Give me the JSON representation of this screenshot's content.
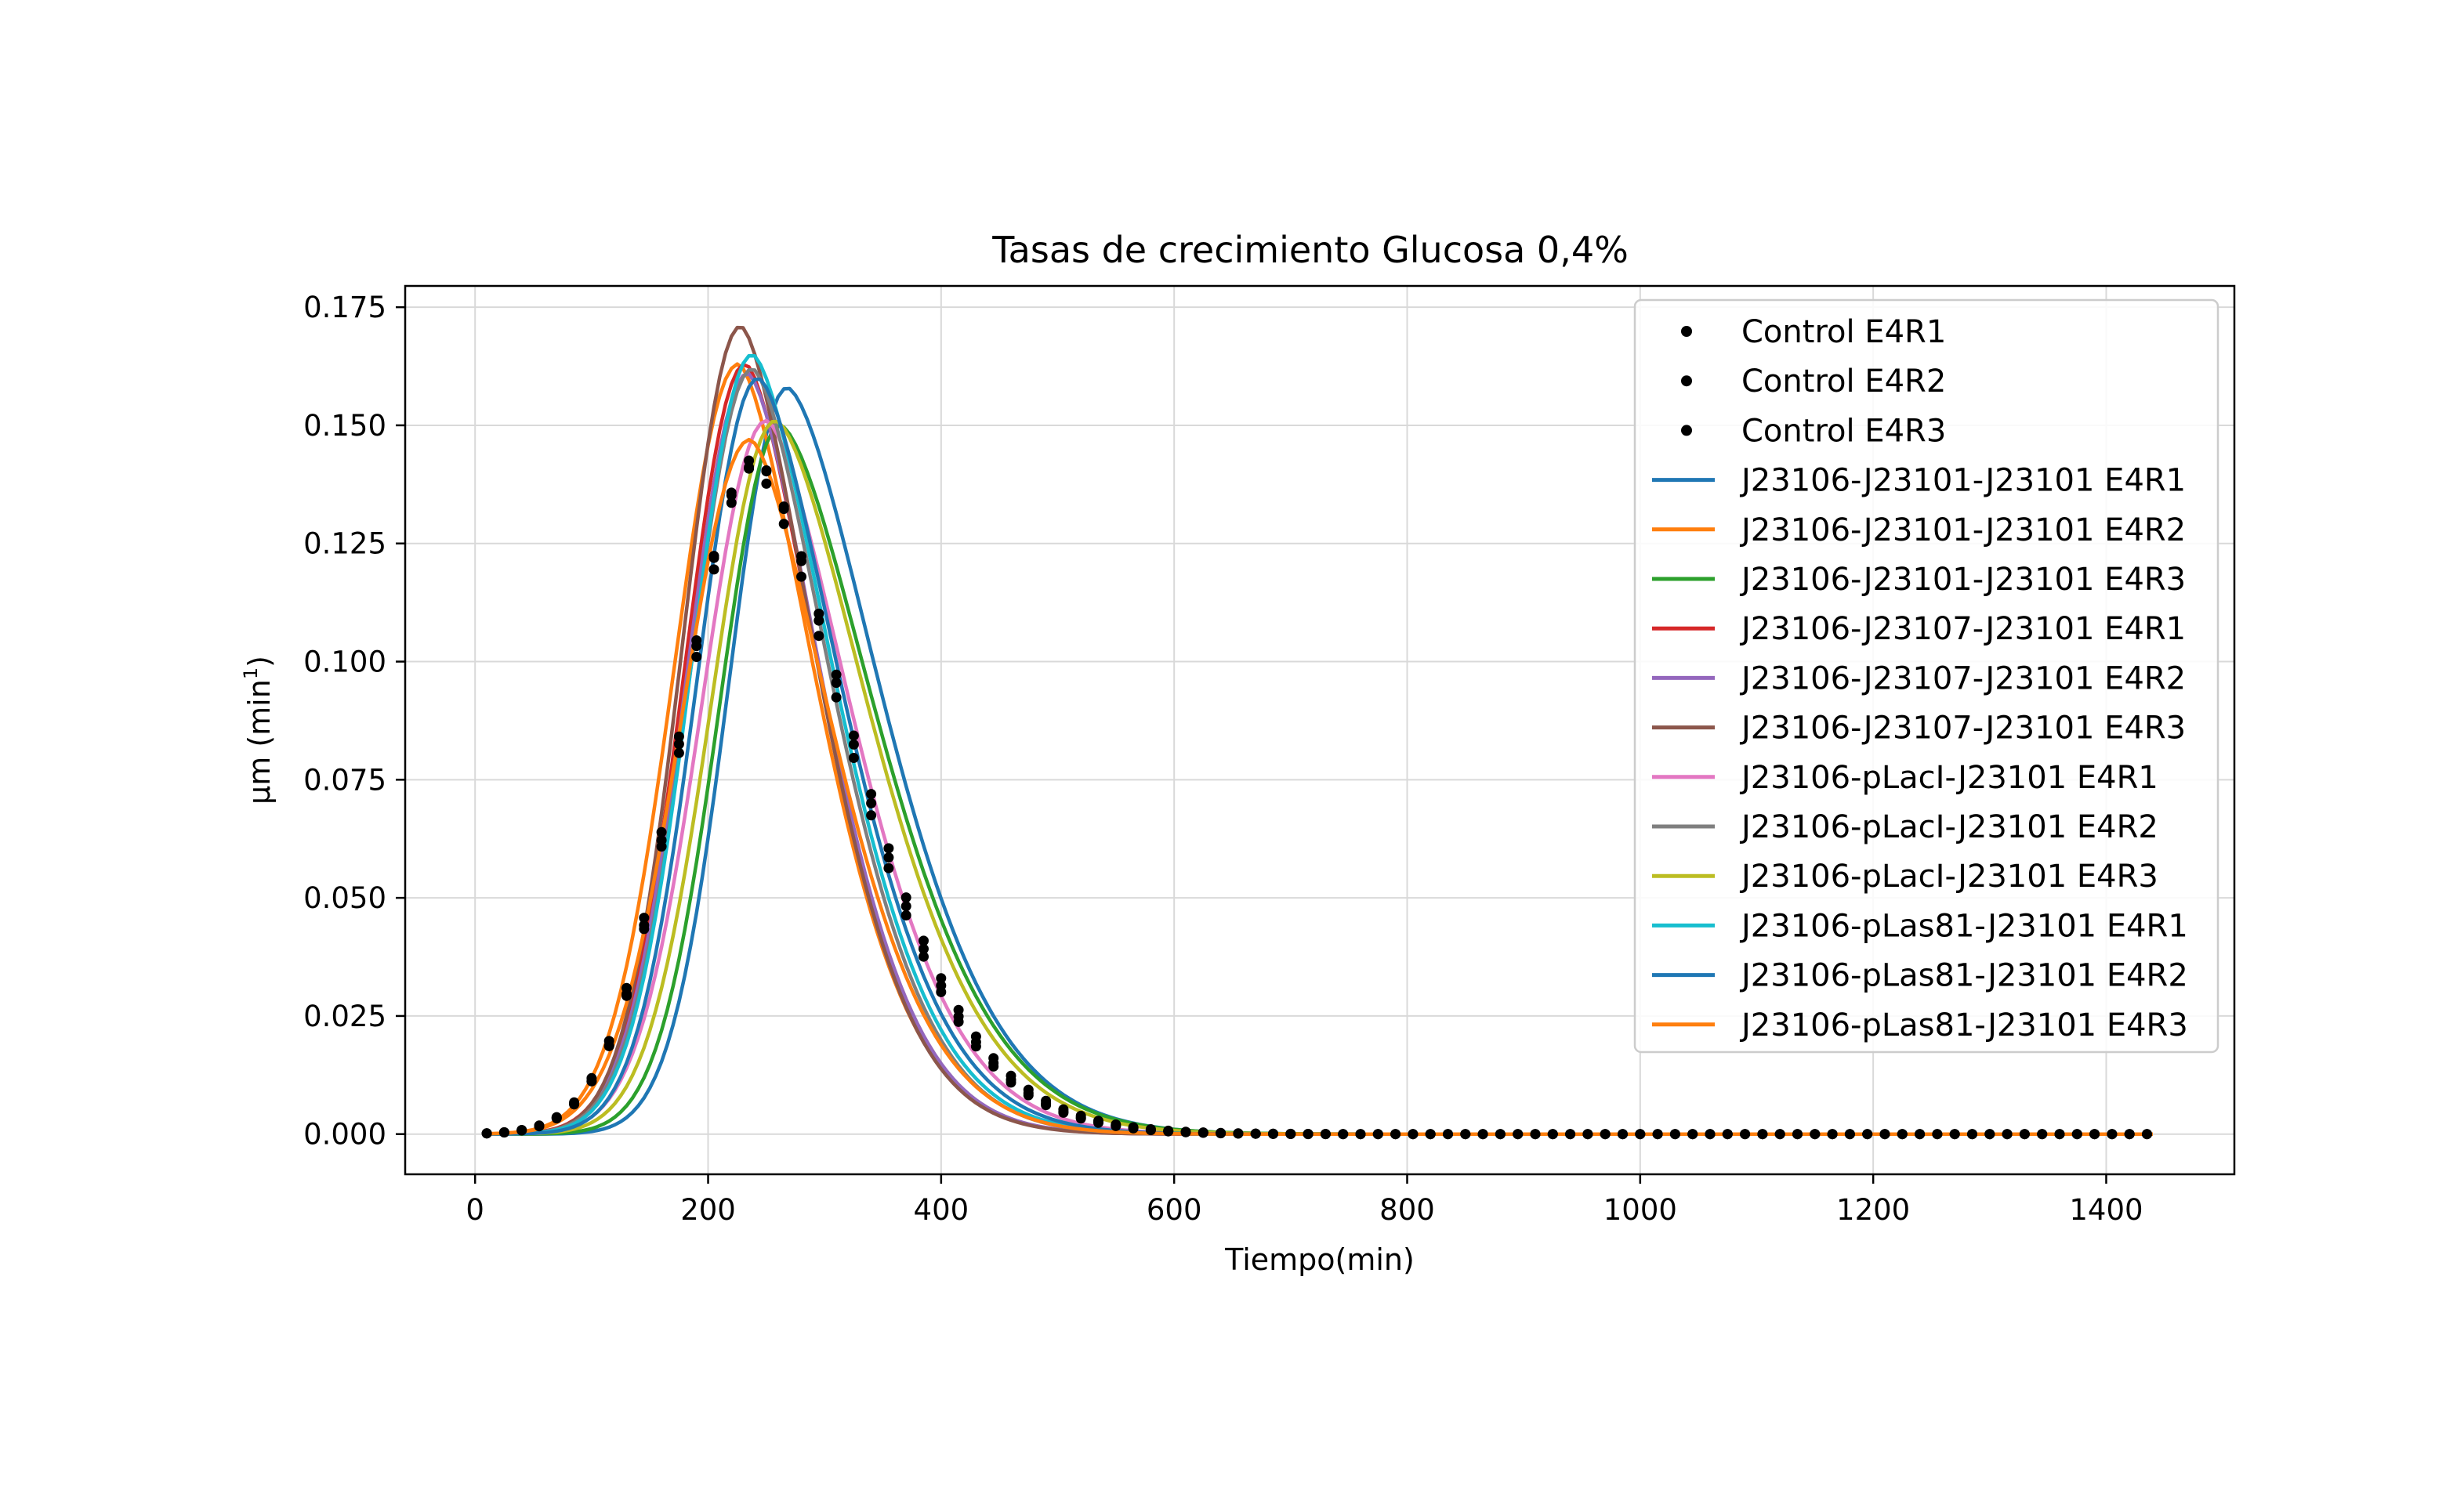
{
  "chart_data": {
    "type": "line",
    "title": "Tasas de crecimiento Glucosa 0,4%",
    "xlabel": "Tiempo(min)",
    "ylabel_prefix": "μm (min",
    "ylabel_sup": "1",
    "ylabel_suffix": ")",
    "xlim": [
      -60,
      1510
    ],
    "ylim": [
      -0.0085,
      0.1795
    ],
    "xticks": [
      0,
      200,
      400,
      600,
      800,
      1000,
      1200,
      1400
    ],
    "xtick_labels": [
      "0",
      "200",
      "400",
      "600",
      "800",
      "1000",
      "1200",
      "1400"
    ],
    "yticks": [
      0.0,
      0.025,
      0.05,
      0.075,
      0.1,
      0.125,
      0.15,
      0.175
    ],
    "ytick_labels": [
      "0.000",
      "0.025",
      "0.050",
      "0.075",
      "0.100",
      "0.125",
      "0.150",
      "0.175"
    ],
    "grid": true,
    "legend_position": "top-right",
    "x_range": [
      10,
      1440
    ],
    "x_step": 15,
    "series": [
      {
        "name": "Control E4R1",
        "kind": "dots",
        "color": "#000000",
        "peak_x": 240,
        "peak_y": 0.143,
        "left_width": 62,
        "right_width": 92
      },
      {
        "name": "Control E4R2",
        "kind": "dots",
        "color": "#000000",
        "peak_x": 238,
        "peak_y": 0.141,
        "left_width": 62,
        "right_width": 92
      },
      {
        "name": "Control E4R3",
        "kind": "dots",
        "color": "#000000",
        "peak_x": 242,
        "peak_y": 0.142,
        "left_width": 63,
        "right_width": 93
      },
      {
        "name": "J23106-J23101-J23101 E4R1",
        "kind": "line",
        "color": "#1f77b4",
        "peak_x": 268,
        "peak_y": 0.158,
        "left_width": 50,
        "right_width": 90
      },
      {
        "name": "J23106-J23101-J23101 E4R2",
        "kind": "line",
        "color": "#ff7f0e",
        "peak_x": 226,
        "peak_y": 0.163,
        "left_width": 55,
        "right_width": 74
      },
      {
        "name": "J23106-J23101-J23101 E4R3",
        "kind": "line",
        "color": "#2ca02c",
        "peak_x": 262,
        "peak_y": 0.15,
        "left_width": 52,
        "right_width": 92
      },
      {
        "name": "J23106-J23107-J23101 E4R1",
        "kind": "line",
        "color": "#d62728",
        "peak_x": 232,
        "peak_y": 0.163,
        "left_width": 52,
        "right_width": 72
      },
      {
        "name": "J23106-J23107-J23101 E4R2",
        "kind": "line",
        "color": "#9467bd",
        "peak_x": 234,
        "peak_y": 0.161,
        "left_width": 52,
        "right_width": 72
      },
      {
        "name": "J23106-J23107-J23101 E4R3",
        "kind": "line",
        "color": "#8c564b",
        "peak_x": 228,
        "peak_y": 0.171,
        "left_width": 50,
        "right_width": 72
      },
      {
        "name": "J23106-pLacI-J23101 E4R1",
        "kind": "line",
        "color": "#e377c2",
        "peak_x": 250,
        "peak_y": 0.151,
        "left_width": 55,
        "right_width": 82
      },
      {
        "name": "J23106-pLacI-J23101 E4R2",
        "kind": "line",
        "color": "#7f7f7f",
        "peak_x": 238,
        "peak_y": 0.162,
        "left_width": 53,
        "right_width": 76
      },
      {
        "name": "J23106-pLacI-J23101 E4R3",
        "kind": "line",
        "color": "#bcbd22",
        "peak_x": 258,
        "peak_y": 0.151,
        "left_width": 55,
        "right_width": 90
      },
      {
        "name": "J23106-pLas81-J23101 E4R1",
        "kind": "line",
        "color": "#17becf",
        "peak_x": 238,
        "peak_y": 0.165,
        "left_width": 52,
        "right_width": 78
      },
      {
        "name": "J23106-pLas81-J23101 E4R2",
        "kind": "line",
        "color": "#1f77b4",
        "peak_x": 243,
        "peak_y": 0.16,
        "left_width": 52,
        "right_width": 80
      },
      {
        "name": "J23106-pLas81-J23101 E4R3",
        "kind": "line",
        "color": "#ff7f0e",
        "peak_x": 236,
        "peak_y": 0.147,
        "left_width": 58,
        "right_width": 78
      }
    ]
  }
}
